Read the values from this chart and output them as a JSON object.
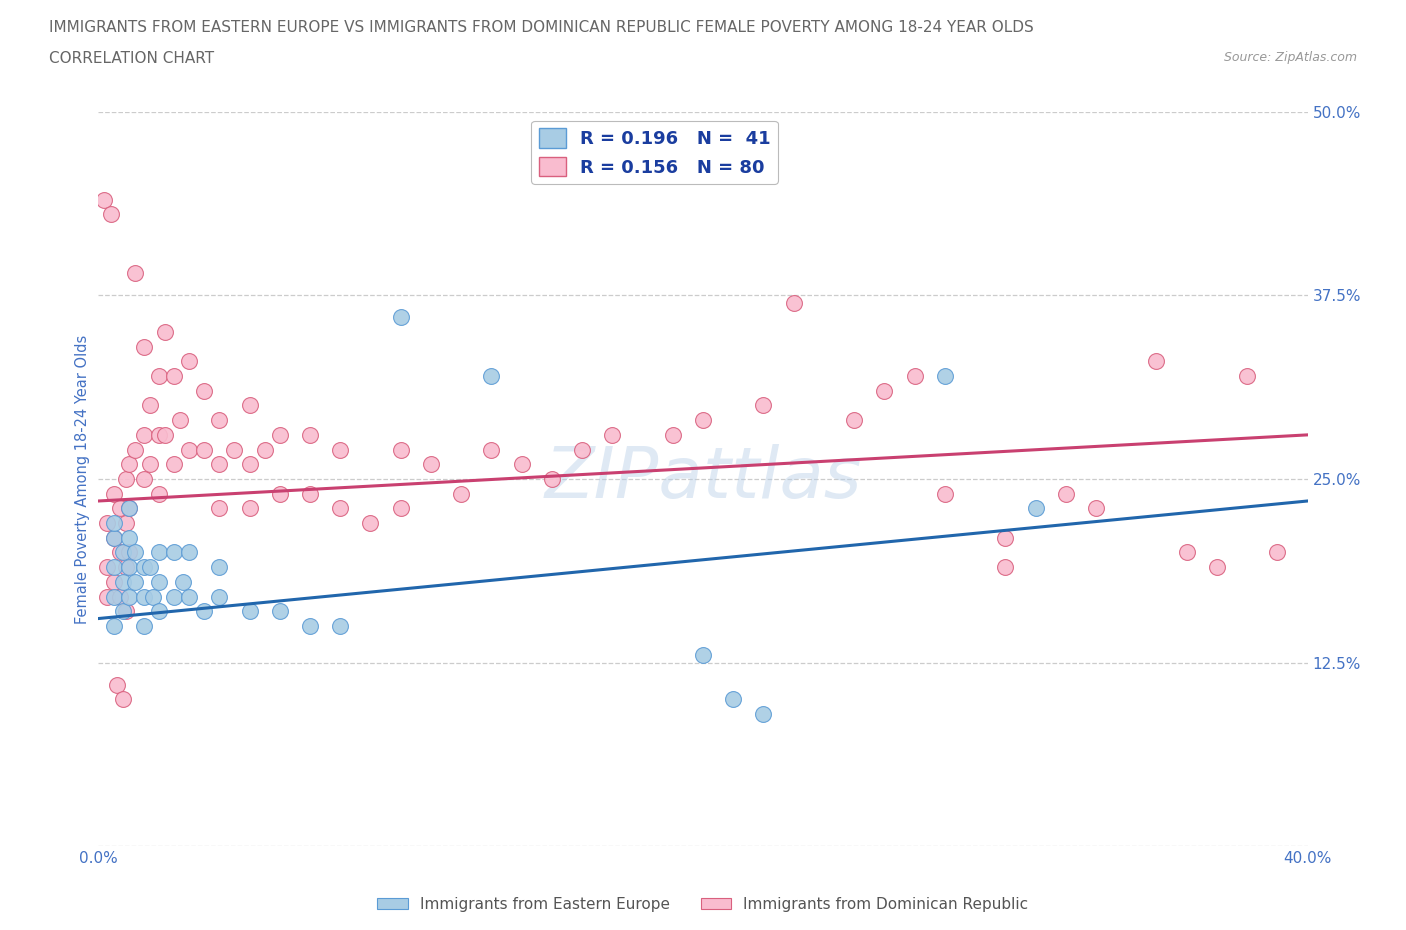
{
  "title_line1": "IMMIGRANTS FROM EASTERN EUROPE VS IMMIGRANTS FROM DOMINICAN REPUBLIC FEMALE POVERTY AMONG 18-24 YEAR OLDS",
  "title_line2": "CORRELATION CHART",
  "source_text": "Source: ZipAtlas.com",
  "ylabel": "Female Poverty Among 18-24 Year Olds",
  "xlim": [
    0.0,
    0.4
  ],
  "ylim": [
    0.0,
    0.5
  ],
  "series1_label": "Immigrants from Eastern Europe",
  "series2_label": "Immigrants from Dominican Republic",
  "series1_color": "#a8cce4",
  "series1_edge": "#5b9bd5",
  "series2_color": "#f9bccf",
  "series2_edge": "#d9607e",
  "line1_color": "#2166ac",
  "line2_color": "#c94070",
  "legend_r1": "R = 0.196",
  "legend_n1": "N =  41",
  "legend_r2": "R = 0.156",
  "legend_n2": "N = 80",
  "grid_color": "#cccccc",
  "title_color": "#666666",
  "title_fontsize": 11.5,
  "tick_color": "#4472c4",
  "axis_label_color": "#4472c4",
  "s1_x": [
    0.005,
    0.005,
    0.005,
    0.005,
    0.005,
    0.008,
    0.008,
    0.008,
    0.01,
    0.01,
    0.01,
    0.01,
    0.012,
    0.012,
    0.015,
    0.015,
    0.015,
    0.017,
    0.018,
    0.02,
    0.02,
    0.02,
    0.025,
    0.025,
    0.028,
    0.03,
    0.03,
    0.035,
    0.04,
    0.04,
    0.05,
    0.06,
    0.07,
    0.08,
    0.1,
    0.13,
    0.2,
    0.21,
    0.22,
    0.28,
    0.31
  ],
  "s1_y": [
    0.21,
    0.19,
    0.17,
    0.15,
    0.22,
    0.2,
    0.18,
    0.16,
    0.21,
    0.19,
    0.17,
    0.23,
    0.2,
    0.18,
    0.19,
    0.17,
    0.15,
    0.19,
    0.17,
    0.2,
    0.18,
    0.16,
    0.2,
    0.17,
    0.18,
    0.2,
    0.17,
    0.16,
    0.19,
    0.17,
    0.16,
    0.16,
    0.15,
    0.15,
    0.36,
    0.32,
    0.13,
    0.1,
    0.09,
    0.32,
    0.23
  ],
  "s2_x": [
    0.003,
    0.003,
    0.003,
    0.005,
    0.005,
    0.005,
    0.007,
    0.007,
    0.007,
    0.009,
    0.009,
    0.009,
    0.009,
    0.01,
    0.01,
    0.01,
    0.012,
    0.012,
    0.015,
    0.015,
    0.015,
    0.017,
    0.017,
    0.02,
    0.02,
    0.02,
    0.022,
    0.022,
    0.025,
    0.025,
    0.027,
    0.03,
    0.03,
    0.035,
    0.035,
    0.04,
    0.04,
    0.04,
    0.045,
    0.05,
    0.05,
    0.05,
    0.055,
    0.06,
    0.06,
    0.07,
    0.07,
    0.08,
    0.08,
    0.09,
    0.1,
    0.1,
    0.11,
    0.12,
    0.13,
    0.14,
    0.15,
    0.16,
    0.17,
    0.19,
    0.2,
    0.22,
    0.23,
    0.25,
    0.26,
    0.27,
    0.28,
    0.3,
    0.3,
    0.32,
    0.33,
    0.35,
    0.36,
    0.37,
    0.38,
    0.39,
    0.002,
    0.004,
    0.006,
    0.008
  ],
  "s2_y": [
    0.22,
    0.19,
    0.17,
    0.24,
    0.21,
    0.18,
    0.23,
    0.2,
    0.17,
    0.25,
    0.22,
    0.19,
    0.16,
    0.26,
    0.23,
    0.2,
    0.39,
    0.27,
    0.34,
    0.28,
    0.25,
    0.3,
    0.26,
    0.32,
    0.28,
    0.24,
    0.35,
    0.28,
    0.32,
    0.26,
    0.29,
    0.33,
    0.27,
    0.31,
    0.27,
    0.29,
    0.26,
    0.23,
    0.27,
    0.3,
    0.26,
    0.23,
    0.27,
    0.28,
    0.24,
    0.28,
    0.24,
    0.27,
    0.23,
    0.22,
    0.27,
    0.23,
    0.26,
    0.24,
    0.27,
    0.26,
    0.25,
    0.27,
    0.28,
    0.28,
    0.29,
    0.3,
    0.37,
    0.29,
    0.31,
    0.32,
    0.24,
    0.19,
    0.21,
    0.24,
    0.23,
    0.33,
    0.2,
    0.19,
    0.32,
    0.2,
    0.44,
    0.43,
    0.11,
    0.1
  ],
  "line1_x0": 0.0,
  "line1_y0": 0.155,
  "line1_x1": 0.4,
  "line1_y1": 0.235,
  "line2_x0": 0.0,
  "line2_y0": 0.235,
  "line2_x1": 0.4,
  "line2_y1": 0.28
}
